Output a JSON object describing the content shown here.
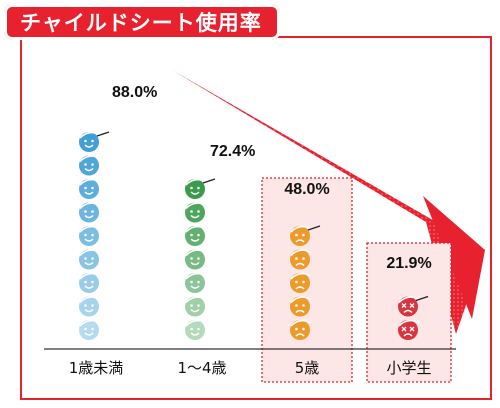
{
  "title": "チャイルドシート使用率",
  "colors": {
    "accent": "#e8212f",
    "highlight_box": "#fde6e6",
    "infant": "#3f9fd6",
    "toddler": "#3a9b4c",
    "age5": "#ec9a2a",
    "school": "#d9343f"
  },
  "icons": {
    "infant": "smiling-face-icon",
    "toddler": "smiling-face-icon",
    "age5": "sad-face-icon",
    "school": "dizzy-face-icon"
  },
  "chart_data": {
    "type": "bar",
    "title": "チャイルドシート使用率",
    "categories": [
      "1歳未満",
      "1〜4歳",
      "5歳",
      "小学生"
    ],
    "values": [
      88.0,
      72.4,
      48.0,
      21.9
    ],
    "value_labels": [
      "88.0%",
      "72.4%",
      "48.0%",
      "21.9%"
    ],
    "unit": "%",
    "ylim": [
      0,
      100
    ],
    "grid": false,
    "legend": "none",
    "highlighted_categories": [
      "5歳",
      "小学生"
    ],
    "trend_arrow": "decreasing"
  }
}
